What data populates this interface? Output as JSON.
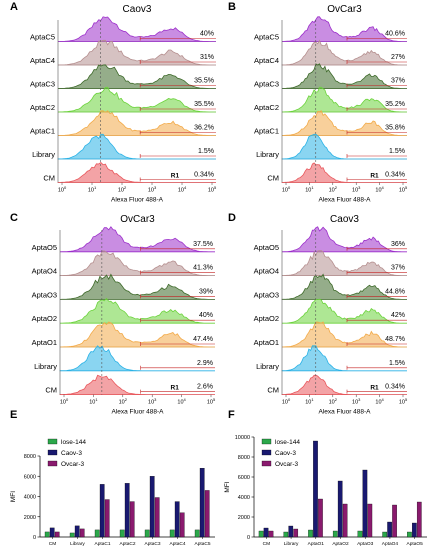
{
  "colors": {
    "rows": [
      "#9C2FCB",
      "#B58F8F",
      "#3E6A2A",
      "#6CD33C",
      "#F2AA48",
      "#2AB2E6",
      "#E9575C"
    ],
    "bar_lose": "#2BA84A",
    "bar_caov": "#191970",
    "bar_ovcar": "#8A1A6E"
  },
  "chart_data": [
    {
      "panel": "A",
      "type": "area",
      "title": "Caov3",
      "xlabel": "Alexa Fluor 488-A",
      "x_ticks": [
        {
          "base": "10",
          "exp": "0"
        },
        {
          "base": "10",
          "exp": "1"
        },
        {
          "base": "10",
          "exp": "2"
        },
        {
          "base": "10",
          "exp": "3"
        },
        {
          "base": "10",
          "exp": "4"
        },
        {
          "base": "10",
          "exp": "5"
        }
      ],
      "gate_label": "R1",
      "rows": [
        {
          "label": "AptaC5",
          "pct": "40%"
        },
        {
          "label": "AptaC4",
          "pct": "31%"
        },
        {
          "label": "AptaC3",
          "pct": "35.5%"
        },
        {
          "label": "AptaC2",
          "pct": "35.5%"
        },
        {
          "label": "AptaC1",
          "pct": "36.2%"
        },
        {
          "label": "Library",
          "pct": "1.5%"
        },
        {
          "label": "CM",
          "pct": "0.34%"
        }
      ]
    },
    {
      "panel": "B",
      "type": "area",
      "title": "OvCar3",
      "xlabel": "Alexa Fluor 488-A",
      "x_ticks": [
        {
          "base": "10",
          "exp": "0"
        },
        {
          "base": "10",
          "exp": "1"
        },
        {
          "base": "10",
          "exp": "2"
        },
        {
          "base": "10",
          "exp": "3"
        },
        {
          "base": "10",
          "exp": "4"
        },
        {
          "base": "10",
          "exp": "5"
        }
      ],
      "gate_label": "R1",
      "rows": [
        {
          "label": "AptaC5",
          "pct": "40.6%"
        },
        {
          "label": "AptaC4",
          "pct": "27%"
        },
        {
          "label": "AptaC3",
          "pct": "37%"
        },
        {
          "label": "AptaC2",
          "pct": "35.2%"
        },
        {
          "label": "AptaC1",
          "pct": "35.8%"
        },
        {
          "label": "Library",
          "pct": "1.5%"
        },
        {
          "label": "CM",
          "pct": "0.34%"
        }
      ]
    },
    {
      "panel": "C",
      "type": "area",
      "title": "OvCar3",
      "xlabel": "Alexa Fluor 488-A",
      "x_ticks": [
        {
          "base": "10",
          "exp": "0"
        },
        {
          "base": "10",
          "exp": "1"
        },
        {
          "base": "10",
          "exp": "2"
        },
        {
          "base": "10",
          "exp": "3"
        },
        {
          "base": "10",
          "exp": "4"
        },
        {
          "base": "10",
          "exp": "5"
        }
      ],
      "gate_label": "R1",
      "rows": [
        {
          "label": "AptaO5",
          "pct": "37.5%"
        },
        {
          "label": "AptaO4",
          "pct": "41.3%"
        },
        {
          "label": "AptaO3",
          "pct": "39%"
        },
        {
          "label": "AptaO2",
          "pct": "40%"
        },
        {
          "label": "AptaO1",
          "pct": "47.4%"
        },
        {
          "label": "Library",
          "pct": "2.9%"
        },
        {
          "label": "CM",
          "pct": "2.6%"
        }
      ]
    },
    {
      "panel": "D",
      "type": "area",
      "title": "Caov3",
      "xlabel": "Alexa Fluor 488-A",
      "x_ticks": [
        {
          "base": "10",
          "exp": "0"
        },
        {
          "base": "10",
          "exp": "1"
        },
        {
          "base": "10",
          "exp": "2"
        },
        {
          "base": "10",
          "exp": "3"
        },
        {
          "base": "10",
          "exp": "4"
        },
        {
          "base": "10",
          "exp": "5"
        }
      ],
      "gate_label": "R1",
      "rows": [
        {
          "label": "AptaO5",
          "pct": "36%"
        },
        {
          "label": "AptaO4",
          "pct": "37%"
        },
        {
          "label": "AptaO3",
          "pct": "44.8%"
        },
        {
          "label": "AptaO2",
          "pct": "42%"
        },
        {
          "label": "AptaO1",
          "pct": "48.7%"
        },
        {
          "label": "Library",
          "pct": "1.5%"
        },
        {
          "label": "CM",
          "pct": "0.34%"
        }
      ]
    },
    {
      "panel": "E",
      "type": "bar",
      "ylabel": "MFI",
      "ylim": [
        0,
        8000
      ],
      "yticks": [
        0,
        2000,
        4000,
        6000,
        8000
      ],
      "categories": [
        "CM",
        "Library",
        "AptaC1",
        "AptaC2",
        "AptaC3",
        "AptaC4",
        "AptaC5"
      ],
      "series": [
        {
          "name": "lose-144",
          "values": [
            500,
            400,
            700,
            700,
            700,
            700,
            700
          ]
        },
        {
          "name": "Caov-3",
          "values": [
            900,
            1100,
            5200,
            5300,
            6000,
            3500,
            6800
          ]
        },
        {
          "name": "Ovcar-3",
          "values": [
            500,
            800,
            3700,
            3500,
            3900,
            2400,
            4600
          ]
        }
      ]
    },
    {
      "panel": "F",
      "type": "bar",
      "ylabel": "MFI",
      "ylim": [
        0,
        10000
      ],
      "yticks": [
        0,
        2000,
        4000,
        6000,
        8000,
        10000
      ],
      "categories": [
        "CM",
        "Library",
        "AptaO1",
        "AptaO2",
        "AptaO3",
        "AptaO4",
        "AptaO5"
      ],
      "series": [
        {
          "name": "lose-144",
          "values": [
            600,
            500,
            700,
            600,
            600,
            500,
            500
          ]
        },
        {
          "name": "Caov-3",
          "values": [
            900,
            1100,
            9600,
            5600,
            6700,
            1500,
            1400
          ]
        },
        {
          "name": "Ovcar-3",
          "values": [
            600,
            800,
            3800,
            3300,
            3300,
            3200,
            3500
          ]
        }
      ]
    }
  ]
}
